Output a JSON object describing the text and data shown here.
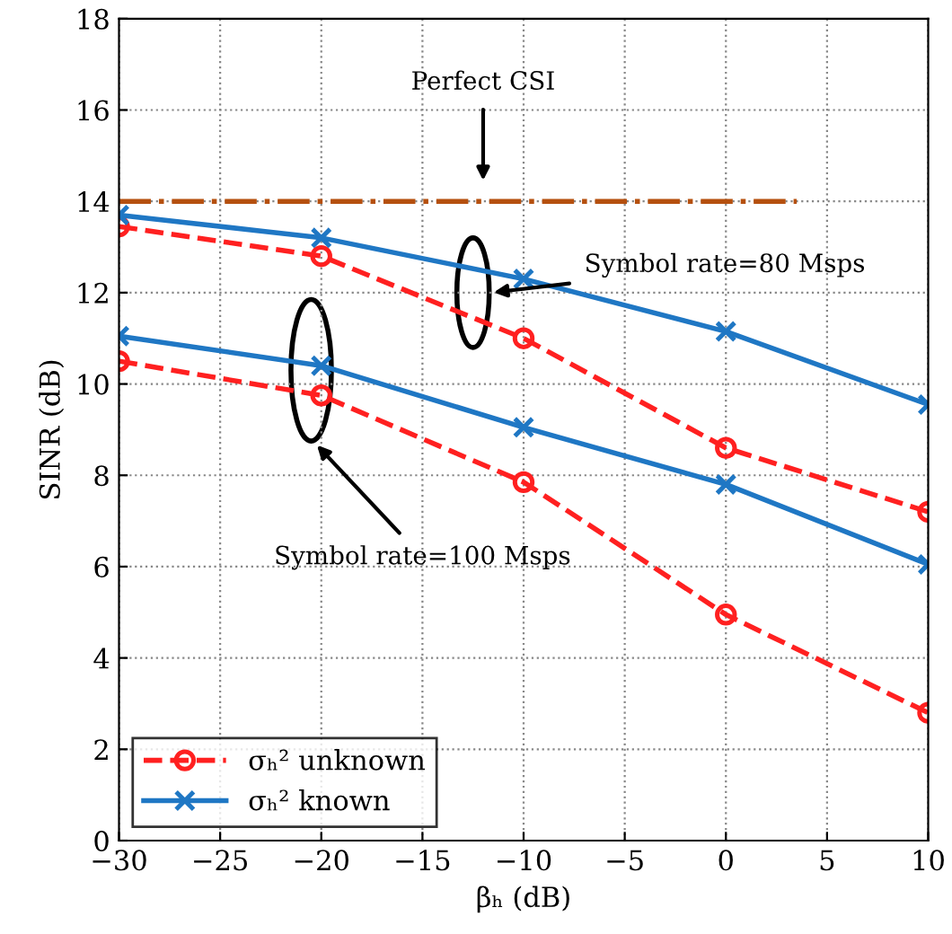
{
  "chart_data": {
    "type": "line",
    "xlabel": "βₕ (dB)",
    "ylabel": "SINR (dB)",
    "xlim": [
      -30,
      10
    ],
    "ylim": [
      0,
      18
    ],
    "xticks": [
      {
        "value": -30,
        "label": "−30"
      },
      {
        "value": -25,
        "label": "−25"
      },
      {
        "value": -20,
        "label": "−20"
      },
      {
        "value": -15,
        "label": "−15"
      },
      {
        "value": -10,
        "label": "−10"
      },
      {
        "value": -5,
        "label": "−5"
      },
      0,
      5,
      10
    ],
    "yticks": [
      0,
      2,
      4,
      6,
      8,
      10,
      12,
      14,
      16,
      18
    ],
    "grid": true,
    "legend": "bottom left",
    "series": [
      {
        "name": "σₕ² unknown",
        "color": "#ff2020",
        "x": [
          -30,
          -20,
          -10,
          0,
          10
        ],
        "values": [
          13.45,
          12.8,
          11.0,
          8.6,
          7.2
        ],
        "marker": "circle",
        "line_style": "dashed"
      },
      {
        "name": "σₕ² known",
        "color": "#1f77c4",
        "x": [
          -30,
          -20,
          -10,
          0,
          10
        ],
        "values": [
          13.7,
          13.2,
          12.3,
          11.15,
          9.55
        ],
        "marker": "cross",
        "line_style": "solid"
      },
      {
        "color": "#ff2020",
        "x": [
          -30,
          -20,
          -10,
          0,
          10
        ],
        "values": [
          10.5,
          9.75,
          7.85,
          4.95,
          2.8
        ],
        "marker": "circle",
        "line_style": "dashed"
      },
      {
        "color": "#1f77c4",
        "x": [
          -30,
          -20,
          -10,
          0,
          10
        ],
        "values": [
          11.05,
          10.4,
          9.05,
          7.8,
          6.05
        ],
        "marker": "cross",
        "line_style": "solid"
      },
      {
        "color": "#b5500f",
        "x": [
          -30,
          3.5
        ],
        "values": [
          14,
          14
        ],
        "marker": "none",
        "line_style": "dashdot"
      }
    ],
    "annotations": [
      "Perfect CSI",
      "Symbol rate=80 Msps",
      "Symbol rate=100 Msps"
    ]
  }
}
